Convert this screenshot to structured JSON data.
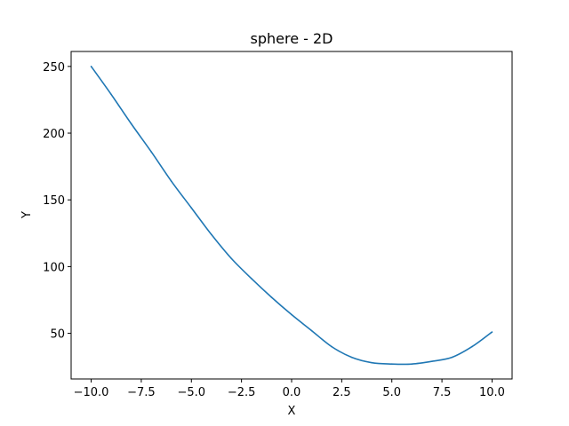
{
  "chart_data": {
    "type": "line",
    "title": "sphere - 2D",
    "xlabel": "X",
    "ylabel": "Y",
    "xlim": [
      -11.0,
      11.0
    ],
    "ylim": [
      15.8,
      261.2
    ],
    "xticks": [
      -10.0,
      -7.5,
      -5.0,
      -2.5,
      0.0,
      2.5,
      5.0,
      7.5,
      10.0
    ],
    "xtick_labels": [
      "−10.0",
      "−7.5",
      "−5.0",
      "−2.5",
      "0.0",
      "2.5",
      "5.0",
      "7.5",
      "10.0"
    ],
    "yticks": [
      50,
      100,
      150,
      200,
      250
    ],
    "ytick_labels": [
      "50",
      "100",
      "150",
      "200",
      "250"
    ],
    "grid": false,
    "series": [
      {
        "color": "#1f77b4",
        "x": [
          -10,
          -9,
          -8,
          -7,
          -6,
          -5,
          -4,
          -3,
          -2,
          -1,
          0,
          1,
          2,
          3,
          4,
          5,
          6,
          7,
          8,
          9,
          10
        ],
        "y": [
          250,
          229,
          207,
          186,
          164,
          144,
          124,
          106,
          91,
          77,
          64,
          52,
          40,
          32,
          28,
          27,
          27,
          29,
          32,
          40,
          51
        ]
      }
    ]
  }
}
